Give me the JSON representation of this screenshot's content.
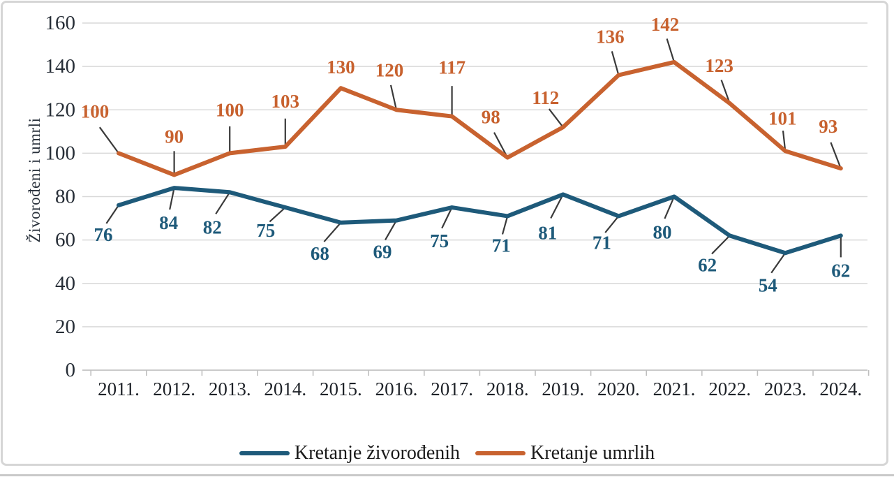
{
  "chart_data": {
    "type": "line",
    "title": "",
    "xlabel": "",
    "ylabel": "Živorođeni i umrli",
    "ylim": [
      0,
      160
    ],
    "y_ticks": [
      0,
      20,
      40,
      60,
      80,
      100,
      120,
      140,
      160
    ],
    "grid": "horizontal",
    "legend_position": "bottom",
    "categories": [
      "2011.",
      "2012.",
      "2013.",
      "2014.",
      "2015.",
      "2016.",
      "2017.",
      "2018.",
      "2019.",
      "2020.",
      "2021.",
      "2022.",
      "2023.",
      "2024."
    ],
    "series": [
      {
        "name": "Kretanje živorođenih",
        "color": "#1E5A7A",
        "values": [
          76,
          84,
          82,
          75,
          68,
          69,
          75,
          71,
          81,
          71,
          80,
          62,
          54,
          62
        ],
        "label_side": "below",
        "label_offsets": [
          [
            -22,
            42
          ],
          [
            -8,
            50
          ],
          [
            -25,
            50
          ],
          [
            -28,
            33
          ],
          [
            -30,
            44
          ],
          [
            -20,
            45
          ],
          [
            -18,
            48
          ],
          [
            -9,
            42
          ],
          [
            -22,
            55
          ],
          [
            -24,
            38
          ],
          [
            -17,
            51
          ],
          [
            -32,
            42
          ],
          [
            -25,
            46
          ],
          [
            0,
            50
          ]
        ]
      },
      {
        "name": "Kretanje umrlih",
        "color": "#C8622F",
        "values": [
          100,
          90,
          100,
          103,
          130,
          120,
          117,
          98,
          112,
          136,
          142,
          123,
          101,
          93
        ],
        "label_side": "above",
        "label_offsets": [
          [
            -34,
            -60
          ],
          [
            0,
            -55
          ],
          [
            0,
            -62
          ],
          [
            0,
            -65
          ],
          [
            0,
            -30
          ],
          [
            -10,
            -57
          ],
          [
            0,
            -70
          ],
          [
            -24,
            -58
          ],
          [
            -25,
            -42
          ],
          [
            -12,
            -55
          ],
          [
            -13,
            -54
          ],
          [
            -15,
            -54
          ],
          [
            -4,
            -47
          ],
          [
            -18,
            -60
          ]
        ]
      }
    ]
  }
}
